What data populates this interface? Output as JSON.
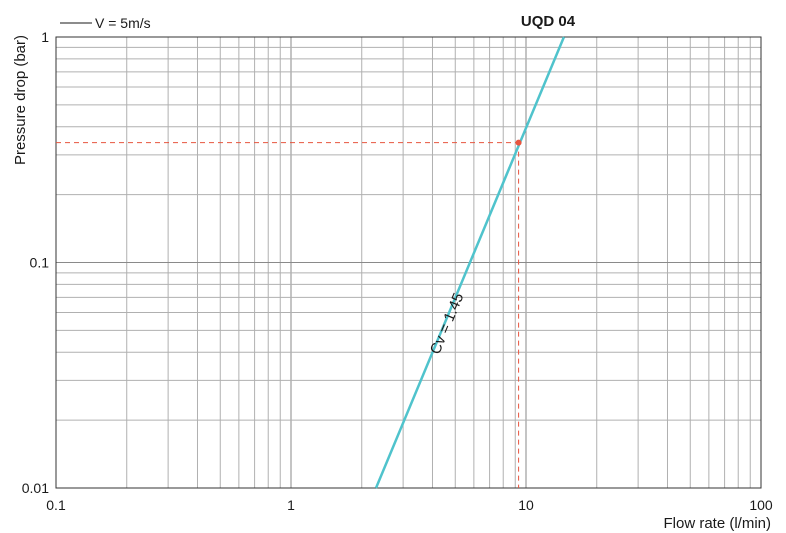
{
  "chart_data": {
    "type": "line",
    "title": "UQD 04",
    "xlabel": "Flow rate (l/min)",
    "ylabel": "Pressure drop (bar)",
    "x_scale": "log",
    "y_scale": "log",
    "xlim": [
      0.1,
      100
    ],
    "ylim": [
      0.01,
      1
    ],
    "x_tick_labels": [
      "0.1",
      "1",
      "10",
      "100"
    ],
    "y_tick_labels": [
      "0.01",
      "0.1",
      "1"
    ],
    "grid": true,
    "legend": {
      "placement": "top-left",
      "entries": [
        {
          "label": "V = 5m/s",
          "color": "#1a1a1a"
        }
      ]
    },
    "series": [
      {
        "label": "Cv = 1.45",
        "color": "#4fc3cc",
        "x": [
          2.3,
          14.5
        ],
        "y": [
          0.01,
          1
        ]
      }
    ],
    "operating_point": {
      "x": 9.3,
      "y": 0.34,
      "color": "#e8553f"
    }
  }
}
